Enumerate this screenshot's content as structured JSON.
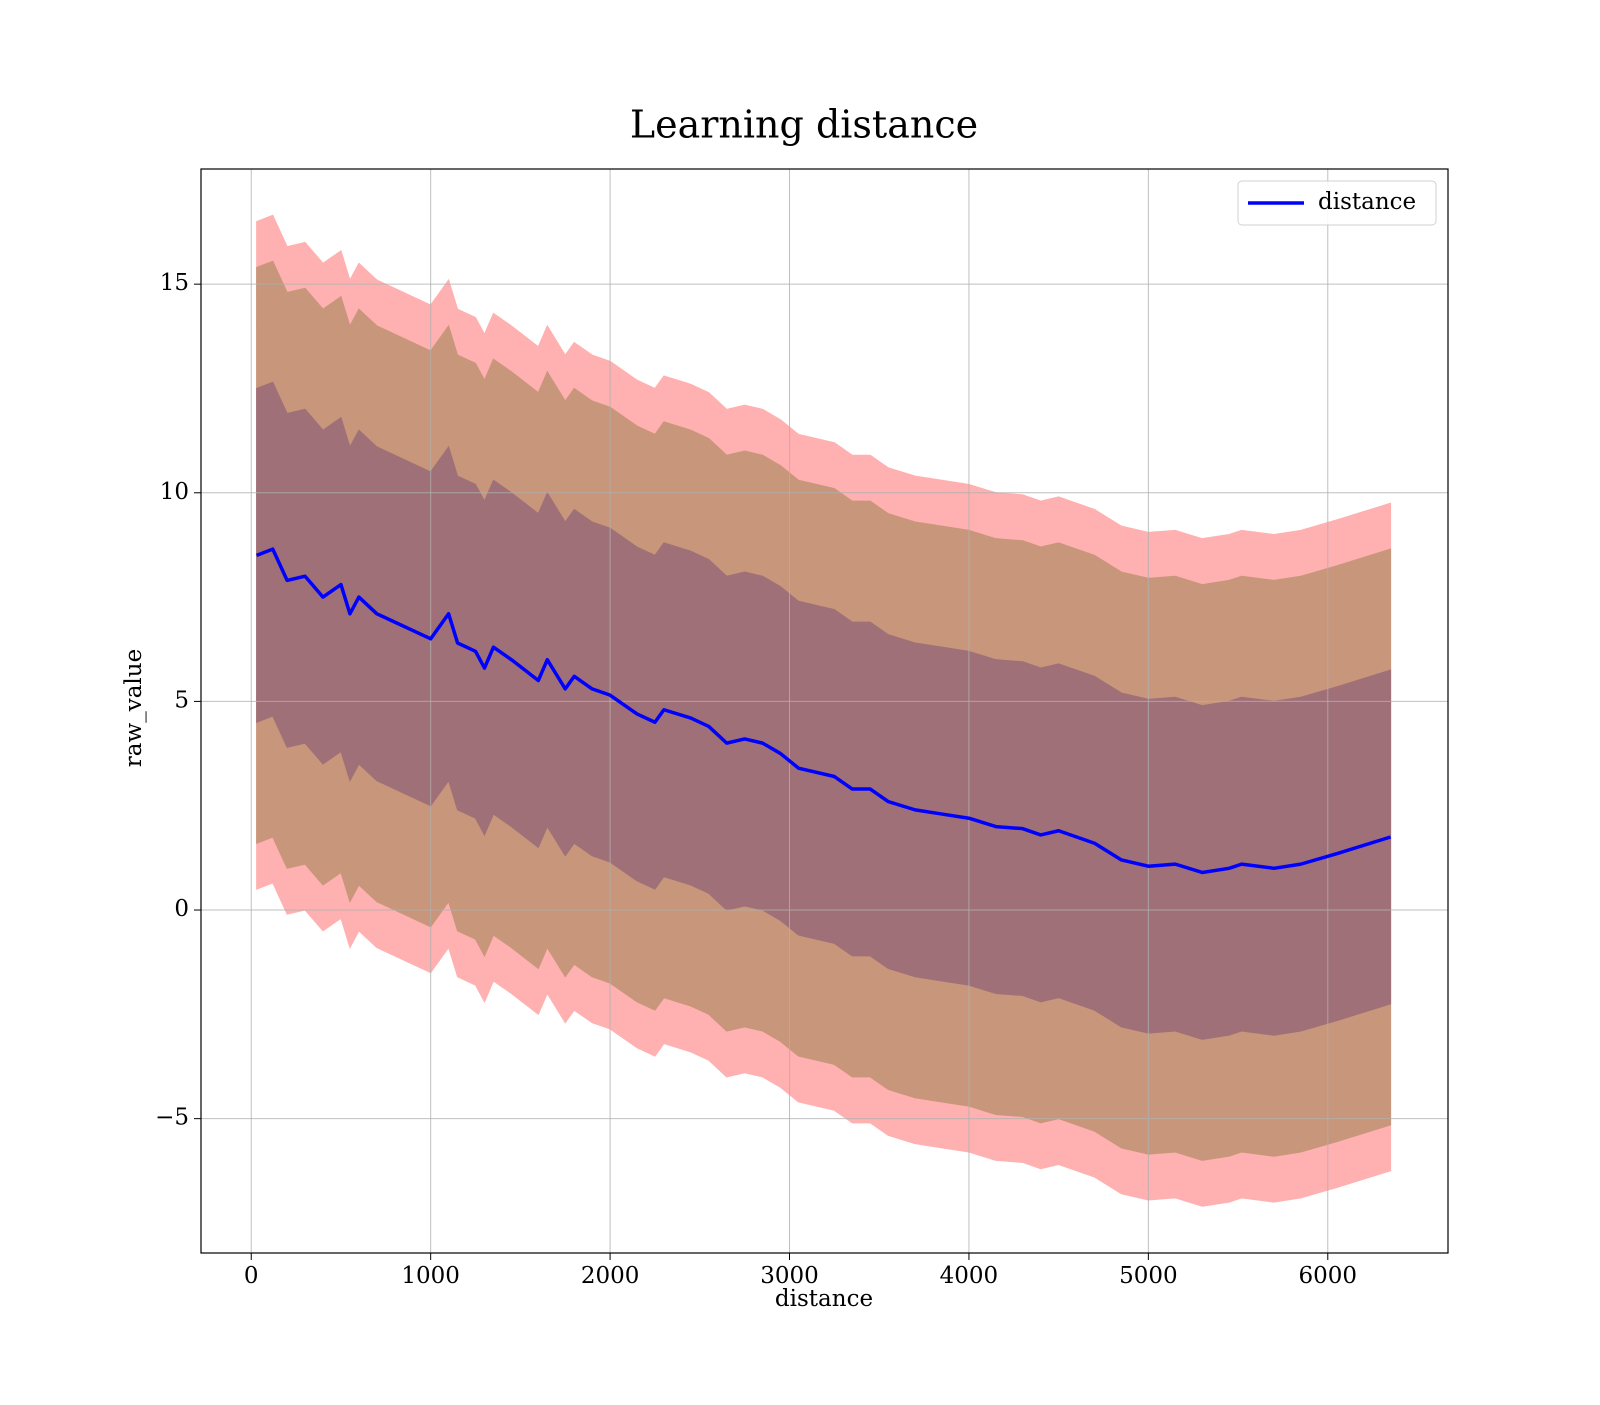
{
  "chart_data": {
    "type": "line",
    "title": "Learning distance",
    "x_label": "distance",
    "y_label": "raw_value",
    "x": [
      30,
      120,
      200,
      300,
      400,
      500,
      550,
      600,
      700,
      800,
      900,
      1000,
      1100,
      1150,
      1250,
      1300,
      1350,
      1450,
      1600,
      1650,
      1750,
      1800,
      1900,
      2000,
      2150,
      2250,
      2300,
      2450,
      2550,
      2650,
      2750,
      2850,
      2950,
      3050,
      3250,
      3350,
      3450,
      3550,
      3700,
      3850,
      4000,
      4150,
      4300,
      4400,
      4500,
      4700,
      4850,
      5000,
      5150,
      5300,
      5450,
      5520,
      5700,
      5850,
      6050,
      6350
    ],
    "series": [
      {
        "name": "distance",
        "color": "#0000ff",
        "values": [
          8.5,
          8.65,
          7.9,
          8.0,
          7.5,
          7.8,
          7.1,
          7.5,
          7.1,
          6.9,
          6.7,
          6.5,
          7.1,
          6.4,
          6.2,
          5.8,
          6.3,
          6.0,
          5.5,
          6.0,
          5.3,
          5.6,
          5.3,
          5.15,
          4.7,
          4.5,
          4.8,
          4.6,
          4.4,
          4.0,
          4.1,
          4.0,
          3.75,
          3.4,
          3.2,
          2.9,
          2.9,
          2.6,
          2.4,
          2.3,
          2.2,
          2.0,
          1.95,
          1.8,
          1.9,
          1.6,
          1.2,
          1.05,
          1.1,
          0.9,
          1.0,
          1.1,
          1.0,
          1.1,
          1.35,
          1.75
        ]
      }
    ],
    "bands": [
      {
        "color": "#ffb0b0",
        "upper": [
          16.5,
          16.65,
          15.9,
          16,
          15.5,
          15.8,
          15.1,
          15.5,
          15.1,
          14.9,
          14.7,
          14.5,
          15.1,
          14.4,
          14.2,
          13.8,
          14.3,
          14,
          13.5,
          14,
          13.3,
          13.6,
          13.3,
          13.15,
          12.7,
          12.5,
          12.8,
          12.6,
          12.4,
          12,
          12.1,
          12,
          11.75,
          11.4,
          11.2,
          10.9,
          10.9,
          10.6,
          10.4,
          10.3,
          10.2,
          10,
          9.95,
          9.8,
          9.9,
          9.6,
          9.2,
          9.05,
          9.1,
          8.9,
          9,
          9.1,
          9,
          9.1,
          9.35,
          9.75
        ],
        "lower": [
          0.5,
          0.65,
          -0.1,
          0,
          -0.5,
          -0.2,
          -0.9,
          -0.5,
          -0.9,
          -1.1,
          -1.3,
          -1.5,
          -0.9,
          -1.6,
          -1.8,
          -2.2,
          -1.7,
          -2,
          -2.5,
          -2,
          -2.7,
          -2.4,
          -2.7,
          -2.85,
          -3.3,
          -3.5,
          -3.2,
          -3.4,
          -3.6,
          -4,
          -3.9,
          -4,
          -4.25,
          -4.6,
          -4.8,
          -5.1,
          -5.1,
          -5.4,
          -5.6,
          -5.7,
          -5.8,
          -6,
          -6.05,
          -6.2,
          -6.1,
          -6.4,
          -6.8,
          -6.95,
          -6.9,
          -7.1,
          -7,
          -6.9,
          -7,
          -6.9,
          -6.65,
          -6.25
        ]
      },
      {
        "color": "#c8967a",
        "upper": [
          15.4,
          15.55,
          14.8,
          14.9,
          14.4,
          14.7,
          14,
          14.4,
          14,
          13.8,
          13.6,
          13.4,
          14,
          13.3,
          13.1,
          12.7,
          13.2,
          12.9,
          12.4,
          12.9,
          12.2,
          12.5,
          12.2,
          12.05,
          11.6,
          11.4,
          11.7,
          11.5,
          11.3,
          10.9,
          11,
          10.9,
          10.65,
          10.3,
          10.1,
          9.8,
          9.8,
          9.5,
          9.3,
          9.2,
          9.1,
          8.9,
          8.85,
          8.7,
          8.8,
          8.5,
          8.1,
          7.95,
          8,
          7.8,
          7.9,
          8,
          7.9,
          8,
          8.25,
          8.65
        ],
        "lower": [
          1.6,
          1.75,
          1,
          1.1,
          0.6,
          0.9,
          0.2,
          0.6,
          0.2,
          0,
          -0.2,
          -0.4,
          0.2,
          -0.5,
          -0.7,
          -1.1,
          -0.6,
          -0.9,
          -1.4,
          -0.9,
          -1.6,
          -1.3,
          -1.6,
          -1.75,
          -2.2,
          -2.4,
          -2.1,
          -2.3,
          -2.5,
          -2.9,
          -2.8,
          -2.9,
          -3.15,
          -3.5,
          -3.7,
          -4,
          -4,
          -4.3,
          -4.5,
          -4.6,
          -4.7,
          -4.9,
          -4.95,
          -5.1,
          -5,
          -5.3,
          -5.7,
          -5.85,
          -5.8,
          -6,
          -5.9,
          -5.8,
          -5.9,
          -5.8,
          -5.55,
          -5.15
        ]
      },
      {
        "color": "#a07078",
        "upper": [
          12.5,
          12.65,
          11.9,
          12,
          11.5,
          11.8,
          11.1,
          11.5,
          11.1,
          10.9,
          10.7,
          10.5,
          11.1,
          10.4,
          10.2,
          9.8,
          10.3,
          10,
          9.5,
          10,
          9.3,
          9.6,
          9.3,
          9.15,
          8.7,
          8.5,
          8.8,
          8.6,
          8.4,
          8,
          8.1,
          8,
          7.75,
          7.4,
          7.2,
          6.9,
          6.9,
          6.6,
          6.4,
          6.3,
          6.2,
          6,
          5.95,
          5.8,
          5.9,
          5.6,
          5.2,
          5.05,
          5.1,
          4.9,
          5,
          5.1,
          5,
          5.1,
          5.35,
          5.75
        ],
        "lower": [
          4.5,
          4.65,
          3.9,
          4,
          3.5,
          3.8,
          3.1,
          3.5,
          3.1,
          2.9,
          2.7,
          2.5,
          3.1,
          2.4,
          2.2,
          1.8,
          2.3,
          2,
          1.5,
          2,
          1.3,
          1.6,
          1.3,
          1.15,
          0.7,
          0.5,
          0.8,
          0.6,
          0.4,
          0,
          0.1,
          0,
          -0.25,
          -0.6,
          -0.8,
          -1.1,
          -1.1,
          -1.4,
          -1.6,
          -1.7,
          -1.8,
          -2,
          -2.05,
          -2.2,
          -2.1,
          -2.4,
          -2.8,
          -2.95,
          -2.9,
          -3.1,
          -3,
          -2.9,
          -3,
          -2.9,
          -2.65,
          -2.25
        ]
      }
    ],
    "xlim": [
      -280,
      6670
    ],
    "ylim": [
      -8.22,
      17.76
    ],
    "xticks": [
      0,
      1000,
      2000,
      3000,
      4000,
      5000,
      6000
    ],
    "yticks": [
      {
        "value": -5,
        "label": "−5"
      },
      0,
      5,
      10,
      15
    ],
    "grid": true,
    "legend": "upper right"
  }
}
